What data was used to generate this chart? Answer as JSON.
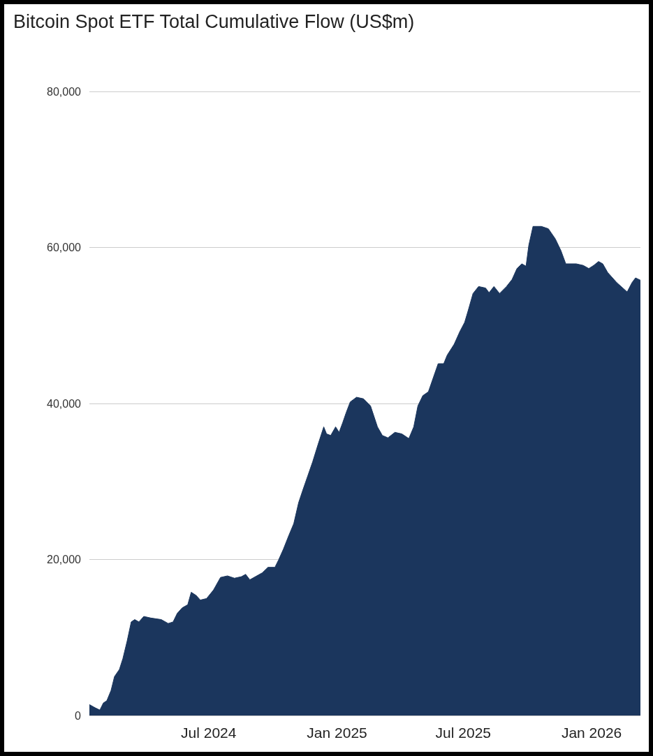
{
  "chart_data": {
    "type": "area",
    "title": "Bitcoin Spot ETF Total Cumulative Flow (US$m)",
    "x": [
      "2024-01-12",
      "2024-01-20",
      "2024-01-27",
      "2024-02-01",
      "2024-02-06",
      "2024-02-12",
      "2024-02-17",
      "2024-02-24",
      "2024-02-29",
      "2024-03-06",
      "2024-03-12",
      "2024-03-17",
      "2024-03-23",
      "2024-03-30",
      "2024-04-09",
      "2024-04-24",
      "2024-05-04",
      "2024-05-11",
      "2024-05-17",
      "2024-05-24",
      "2024-06-01",
      "2024-06-06",
      "2024-06-13",
      "2024-06-19",
      "2024-06-28",
      "2024-07-08",
      "2024-07-18",
      "2024-07-28",
      "2024-08-07",
      "2024-08-17",
      "2024-08-23",
      "2024-08-29",
      "2024-09-06",
      "2024-09-16",
      "2024-09-24",
      "2024-10-04",
      "2024-10-09",
      "2024-10-16",
      "2024-10-24",
      "2024-10-31",
      "2024-11-07",
      "2024-11-13",
      "2024-11-20",
      "2024-11-27",
      "2024-12-05",
      "2024-12-13",
      "2024-12-17",
      "2024-12-23",
      "2024-12-30",
      "2025-01-04",
      "2025-01-09",
      "2025-01-14",
      "2025-01-20",
      "2025-01-29",
      "2025-02-08",
      "2025-02-18",
      "2025-02-28",
      "2025-03-07",
      "2025-03-15",
      "2025-03-25",
      "2025-04-04",
      "2025-04-14",
      "2025-04-21",
      "2025-04-27",
      "2025-05-04",
      "2025-05-12",
      "2025-05-19",
      "2025-05-26",
      "2025-06-03",
      "2025-06-08",
      "2025-06-18",
      "2025-06-26",
      "2025-07-03",
      "2025-07-08",
      "2025-07-15",
      "2025-07-23",
      "2025-08-02",
      "2025-08-07",
      "2025-08-14",
      "2025-08-22",
      "2025-09-01",
      "2025-09-09",
      "2025-09-16",
      "2025-09-23",
      "2025-09-29",
      "2025-10-03",
      "2025-10-09",
      "2025-10-21",
      "2025-10-31",
      "2025-11-10",
      "2025-11-18",
      "2025-11-25",
      "2025-12-10",
      "2025-12-20",
      "2025-12-28",
      "2026-01-04",
      "2026-01-11",
      "2026-01-17",
      "2026-01-24",
      "2026-02-06",
      "2026-02-21",
      "2026-02-28",
      "2026-03-05",
      "2026-03-12"
    ],
    "series": [
      {
        "color": "#1b365d",
        "values": [
          1400,
          1000,
          700,
          1600,
          1900,
          3200,
          5000,
          5900,
          7300,
          9500,
          12000,
          12300,
          12000,
          12700,
          12500,
          12300,
          11800,
          12000,
          13100,
          13800,
          14200,
          15800,
          15400,
          14800,
          15000,
          16100,
          17700,
          17900,
          17600,
          17800,
          18100,
          17400,
          17800,
          18300,
          19000,
          19000,
          19900,
          21300,
          23100,
          24600,
          27300,
          28900,
          30700,
          32500,
          34800,
          37000,
          36100,
          35900,
          37000,
          36300,
          37500,
          38800,
          40200,
          40800,
          40600,
          39700,
          37000,
          35900,
          35600,
          36300,
          36100,
          35500,
          37000,
          39700,
          41000,
          41500,
          43300,
          45100,
          45100,
          46200,
          47600,
          49200,
          50400,
          51900,
          54100,
          55000,
          54800,
          54200,
          55000,
          54100,
          55000,
          55900,
          57300,
          57900,
          57600,
          60300,
          62700,
          62700,
          62400,
          61100,
          59600,
          57900,
          57900,
          57700,
          57300,
          57700,
          58200,
          57900,
          56800,
          55500,
          54300,
          55500,
          56100,
          55800
        ]
      }
    ],
    "xlim": [
      "2024-01-12",
      "2026-03-12"
    ],
    "xticks": [
      {
        "value": "2024-07-01",
        "label": "Jul 2024"
      },
      {
        "value": "2025-01-01",
        "label": "Jan 2025"
      },
      {
        "value": "2025-07-01",
        "label": "Jul 2025"
      },
      {
        "value": "2026-01-01",
        "label": "Jan 2026"
      }
    ],
    "ylim": [
      0,
      80000
    ],
    "yticks": [
      {
        "value": 0,
        "label": "0"
      },
      {
        "value": 20000,
        "label": "20,000"
      },
      {
        "value": 40000,
        "label": "40,000"
      },
      {
        "value": 60000,
        "label": "60,000"
      },
      {
        "value": 80000,
        "label": "80,000"
      }
    ],
    "grid": "y",
    "marker": "none"
  }
}
